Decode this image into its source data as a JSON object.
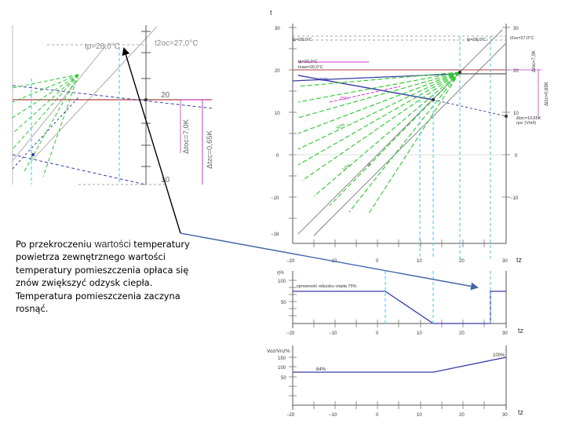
{
  "caption": {
    "part1": "Po przekroczeniu ",
    "part2": "wartości",
    "part3": " temperatury powietrza zewnętrznego wartości temperatury pomieszczenia opłaca się znów zwiększyć odzysk ciepła. Temperatura pomieszczenia zaczyna rosnąć."
  },
  "zoom_panel": {
    "tp_label": "tp=28,0°C",
    "t2oc_label": "t2oc=27,0°C",
    "tick_20": "20",
    "tick_10": "10",
    "dt_label_1": "Δtoc=7,0K",
    "dt_label_2": "Δtzc=0,65K"
  },
  "main_chart": {
    "y_axis_label": "t",
    "x_axis_label": "tz",
    "y_ticks_left": [
      "30",
      "20",
      "10",
      "0",
      "−10",
      "−18"
    ],
    "y_ticks_right": [
      "30",
      "20",
      "10",
      "0",
      "−10"
    ],
    "x_ticks": [
      "−20",
      "−10",
      "0",
      "10",
      "20",
      "30"
    ],
    "ann_tp_left": "tp=28,0°C",
    "ann_tp_right": "tp=28,0°C",
    "ann_t2oc": "t2oc=27,0°C",
    "ann_tp20": "tp=20,0°C",
    "ann_tnaw": "tnaw=20,0°C",
    "ann_dtoc": "Δtoc=7,0K",
    "ann_dtzc": "Δtzc=0,65K",
    "ann_bottom_1": "Δtzc=10,65K",
    "ann_bottom_2": "ηoc (Vm/l)",
    "pct_90": "90%",
    "pct_75": "75%",
    "pct_50": "50%",
    "pct_10": "10%",
    "line_tz": "tz"
  },
  "recovery_chart": {
    "y_label": "η%",
    "x_label": "tz",
    "legend": "sprawność odzysku ciepła 75%",
    "y_ticks": [
      "100",
      "50"
    ],
    "x_ticks": [
      "−20",
      "−10",
      "0",
      "10",
      "20",
      "30"
    ]
  },
  "airflow_chart": {
    "y_label": "Voz/Vnz%",
    "x_label": "tz",
    "label_64": "64%",
    "label_100": "100%",
    "y_ticks": [
      "150",
      "100",
      "50"
    ],
    "x_ticks": [
      "−20",
      "−10",
      "0",
      "10",
      "20",
      "30"
    ]
  },
  "colors": {
    "blue_line": "#3a3aa8",
    "green_dash": "#28c828",
    "magenta": "#cc33cc",
    "red_line": "#b04040",
    "cyan_dash": "#66ccee",
    "axis": "#555555",
    "arrow": "#000000",
    "arrow2": "#4466aa"
  }
}
